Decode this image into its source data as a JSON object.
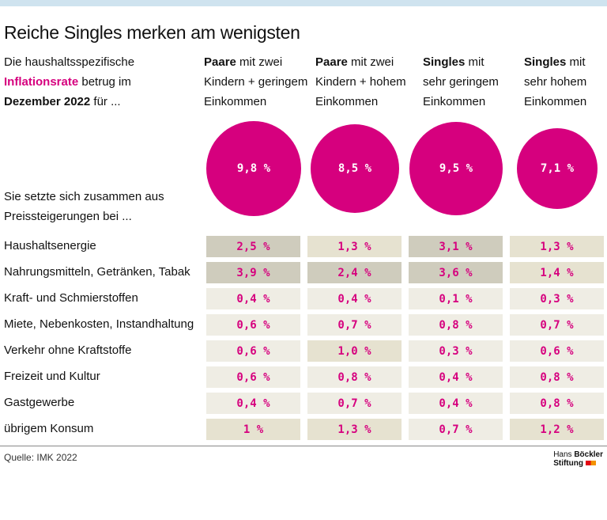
{
  "title": "Reiche Singles merken am wenigsten",
  "intro": {
    "pre": "Die haushaltsspezifische",
    "highlight": "Inflationsrate",
    "mid": " betrug im",
    "bold": "Dezember 2022",
    "post": " für ..."
  },
  "subheading": [
    "Sie setzte sich zusammen aus",
    "Preissteigerungen bei ..."
  ],
  "columns": [
    {
      "bold": "Paare",
      "rest1": " mit zwei",
      "line2": "Kindern + geringem",
      "line3": "Einkommen"
    },
    {
      "bold": "Paare",
      "rest1": " mit zwei",
      "line2": "Kindern + hohem",
      "line3": "Einkommen"
    },
    {
      "bold": "Singles",
      "rest1": " mit",
      "line2": "sehr geringem",
      "line3": "Einkommen"
    },
    {
      "bold": "Singles",
      "rest1": " mit",
      "line2": "sehr hohem",
      "line3": "Einkommen"
    }
  ],
  "colors": {
    "accent": "#d6007e",
    "cell_dark": "#cfccbd",
    "cell_mid": "#e6e2d0",
    "cell_light": "#efede4",
    "topbar": "#cfe3ef"
  },
  "chart_data": {
    "type": "table",
    "title": "Reiche Singles merken am wenigsten",
    "unit": "%",
    "totals": [
      9.8,
      8.5,
      9.5,
      7.1
    ],
    "totals_labels": [
      "9,8 %",
      "8,5 %",
      "9,5 %",
      "7,1 %"
    ],
    "rows": [
      {
        "label": "Haushaltsenergie",
        "values": [
          2.5,
          1.3,
          3.1,
          1.3
        ],
        "labels": [
          "2,5 %",
          "1,3 %",
          "3,1 %",
          "1,3 %"
        ]
      },
      {
        "label": "Nahrungsmitteln, Getränken, Tabak",
        "values": [
          3.9,
          2.4,
          3.6,
          1.4
        ],
        "labels": [
          "3,9 %",
          "2,4 %",
          "3,6 %",
          "1,4 %"
        ]
      },
      {
        "label": "Kraft- und Schmierstoffen",
        "values": [
          0.4,
          0.4,
          0.1,
          0.3
        ],
        "labels": [
          "0,4 %",
          "0,4 %",
          "0,1 %",
          "0,3 %"
        ]
      },
      {
        "label": "Miete, Nebenkosten, Instandhaltung",
        "values": [
          0.6,
          0.7,
          0.8,
          0.7
        ],
        "labels": [
          "0,6 %",
          "0,7 %",
          "0,8 %",
          "0,7 %"
        ]
      },
      {
        "label": "Verkehr ohne Kraftstoffe",
        "values": [
          0.6,
          1.0,
          0.3,
          0.6
        ],
        "labels": [
          "0,6 %",
          "1,0 %",
          "0,3 %",
          "0,6 %"
        ]
      },
      {
        "label": "Freizeit und Kultur",
        "values": [
          0.6,
          0.8,
          0.4,
          0.8
        ],
        "labels": [
          "0,6 %",
          "0,8 %",
          "0,4 %",
          "0,8 %"
        ]
      },
      {
        "label": "Gastgewerbe",
        "values": [
          0.4,
          0.7,
          0.4,
          0.8
        ],
        "labels": [
          "0,4 %",
          "0,7 %",
          "0,4 %",
          "0,8 %"
        ]
      },
      {
        "label": "übrigem Konsum",
        "values": [
          1,
          1.3,
          0.7,
          1.2
        ],
        "labels": [
          "1 %",
          "1,3 %",
          "0,7 %",
          "1,2 %"
        ]
      }
    ]
  },
  "source": "Quelle: IMK 2022",
  "logo": {
    "line1a": "Hans ",
    "line1b": "Böckler",
    "line2": "Stiftung"
  }
}
